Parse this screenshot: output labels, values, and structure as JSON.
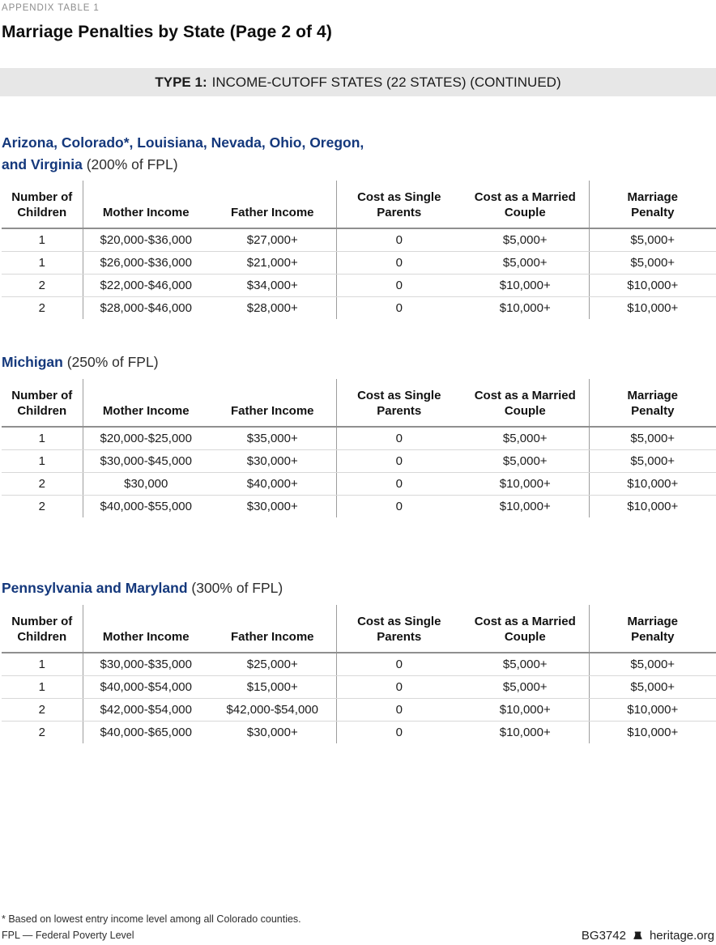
{
  "page": {
    "eyebrow": "APPENDIX TABLE 1",
    "title": "Marriage Penalties by State (Page 2 of 4)",
    "banner_prefix": "TYPE 1:",
    "banner_text": "INCOME-CUTOFF STATES (22 STATES) (CONTINUED)"
  },
  "columns": [
    "Number of\nChildren",
    "Mother Income",
    "Father Income",
    "Cost as Single\nParents",
    "Cost as a Married\nCouple",
    "Marriage\nPenalty"
  ],
  "sections": [
    {
      "heading_bold": "Arizona, Colorado*, Louisiana, Nevada, Ohio, Oregon,\nand Virginia",
      "heading_note": " (200% of FPL)",
      "rows": [
        [
          "1",
          "$20,000-$36,000",
          "$27,000+",
          "0",
          "$5,000+",
          "$5,000+"
        ],
        [
          "1",
          "$26,000-$36,000",
          "$21,000+",
          "0",
          "$5,000+",
          "$5,000+"
        ],
        [
          "2",
          "$22,000-$46,000",
          "$34,000+",
          "0",
          "$10,000+",
          "$10,000+"
        ],
        [
          "2",
          "$28,000-$46,000",
          "$28,000+",
          "0",
          "$10,000+",
          "$10,000+"
        ]
      ]
    },
    {
      "heading_bold": "Michigan",
      "heading_note": " (250% of FPL)",
      "rows": [
        [
          "1",
          "$20,000-$25,000",
          "$35,000+",
          "0",
          "$5,000+",
          "$5,000+"
        ],
        [
          "1",
          "$30,000-$45,000",
          "$30,000+",
          "0",
          "$5,000+",
          "$5,000+"
        ],
        [
          "2",
          "$30,000",
          "$40,000+",
          "0",
          "$10,000+",
          "$10,000+"
        ],
        [
          "2",
          "$40,000-$55,000",
          "$30,000+",
          "0",
          "$10,000+",
          "$10,000+"
        ]
      ]
    },
    {
      "heading_bold": "Pennsylvania and Maryland",
      "heading_note": " (300% of FPL)",
      "rows": [
        [
          "1",
          "$30,000-$35,000",
          "$25,000+",
          "0",
          "$5,000+",
          "$5,000+"
        ],
        [
          "1",
          "$40,000-$54,000",
          "$15,000+",
          "0",
          "$5,000+",
          "$5,000+"
        ],
        [
          "2",
          "$42,000-$54,000",
          "$42,000-$54,000",
          "0",
          "$10,000+",
          "$10,000+"
        ],
        [
          "2",
          "$40,000-$65,000",
          "$30,000+",
          "0",
          "$10,000+",
          "$10,000+"
        ]
      ]
    }
  ],
  "footer": {
    "footnote_asterisk": "* Based on lowest entry income level among all Colorado counties.",
    "footnote_fpl": "FPL — Federal Poverty Level",
    "doc_id": "BG3742",
    "site": "heritage.org",
    "bell_icon": "liberty-bell-icon"
  },
  "colors": {
    "heading_blue": "#14387c",
    "banner_bg": "#e7e7e7",
    "vertical_divider": "#9d9d9d",
    "header_rule": "#8f8f8f",
    "row_rule": "#d8d8d8"
  }
}
